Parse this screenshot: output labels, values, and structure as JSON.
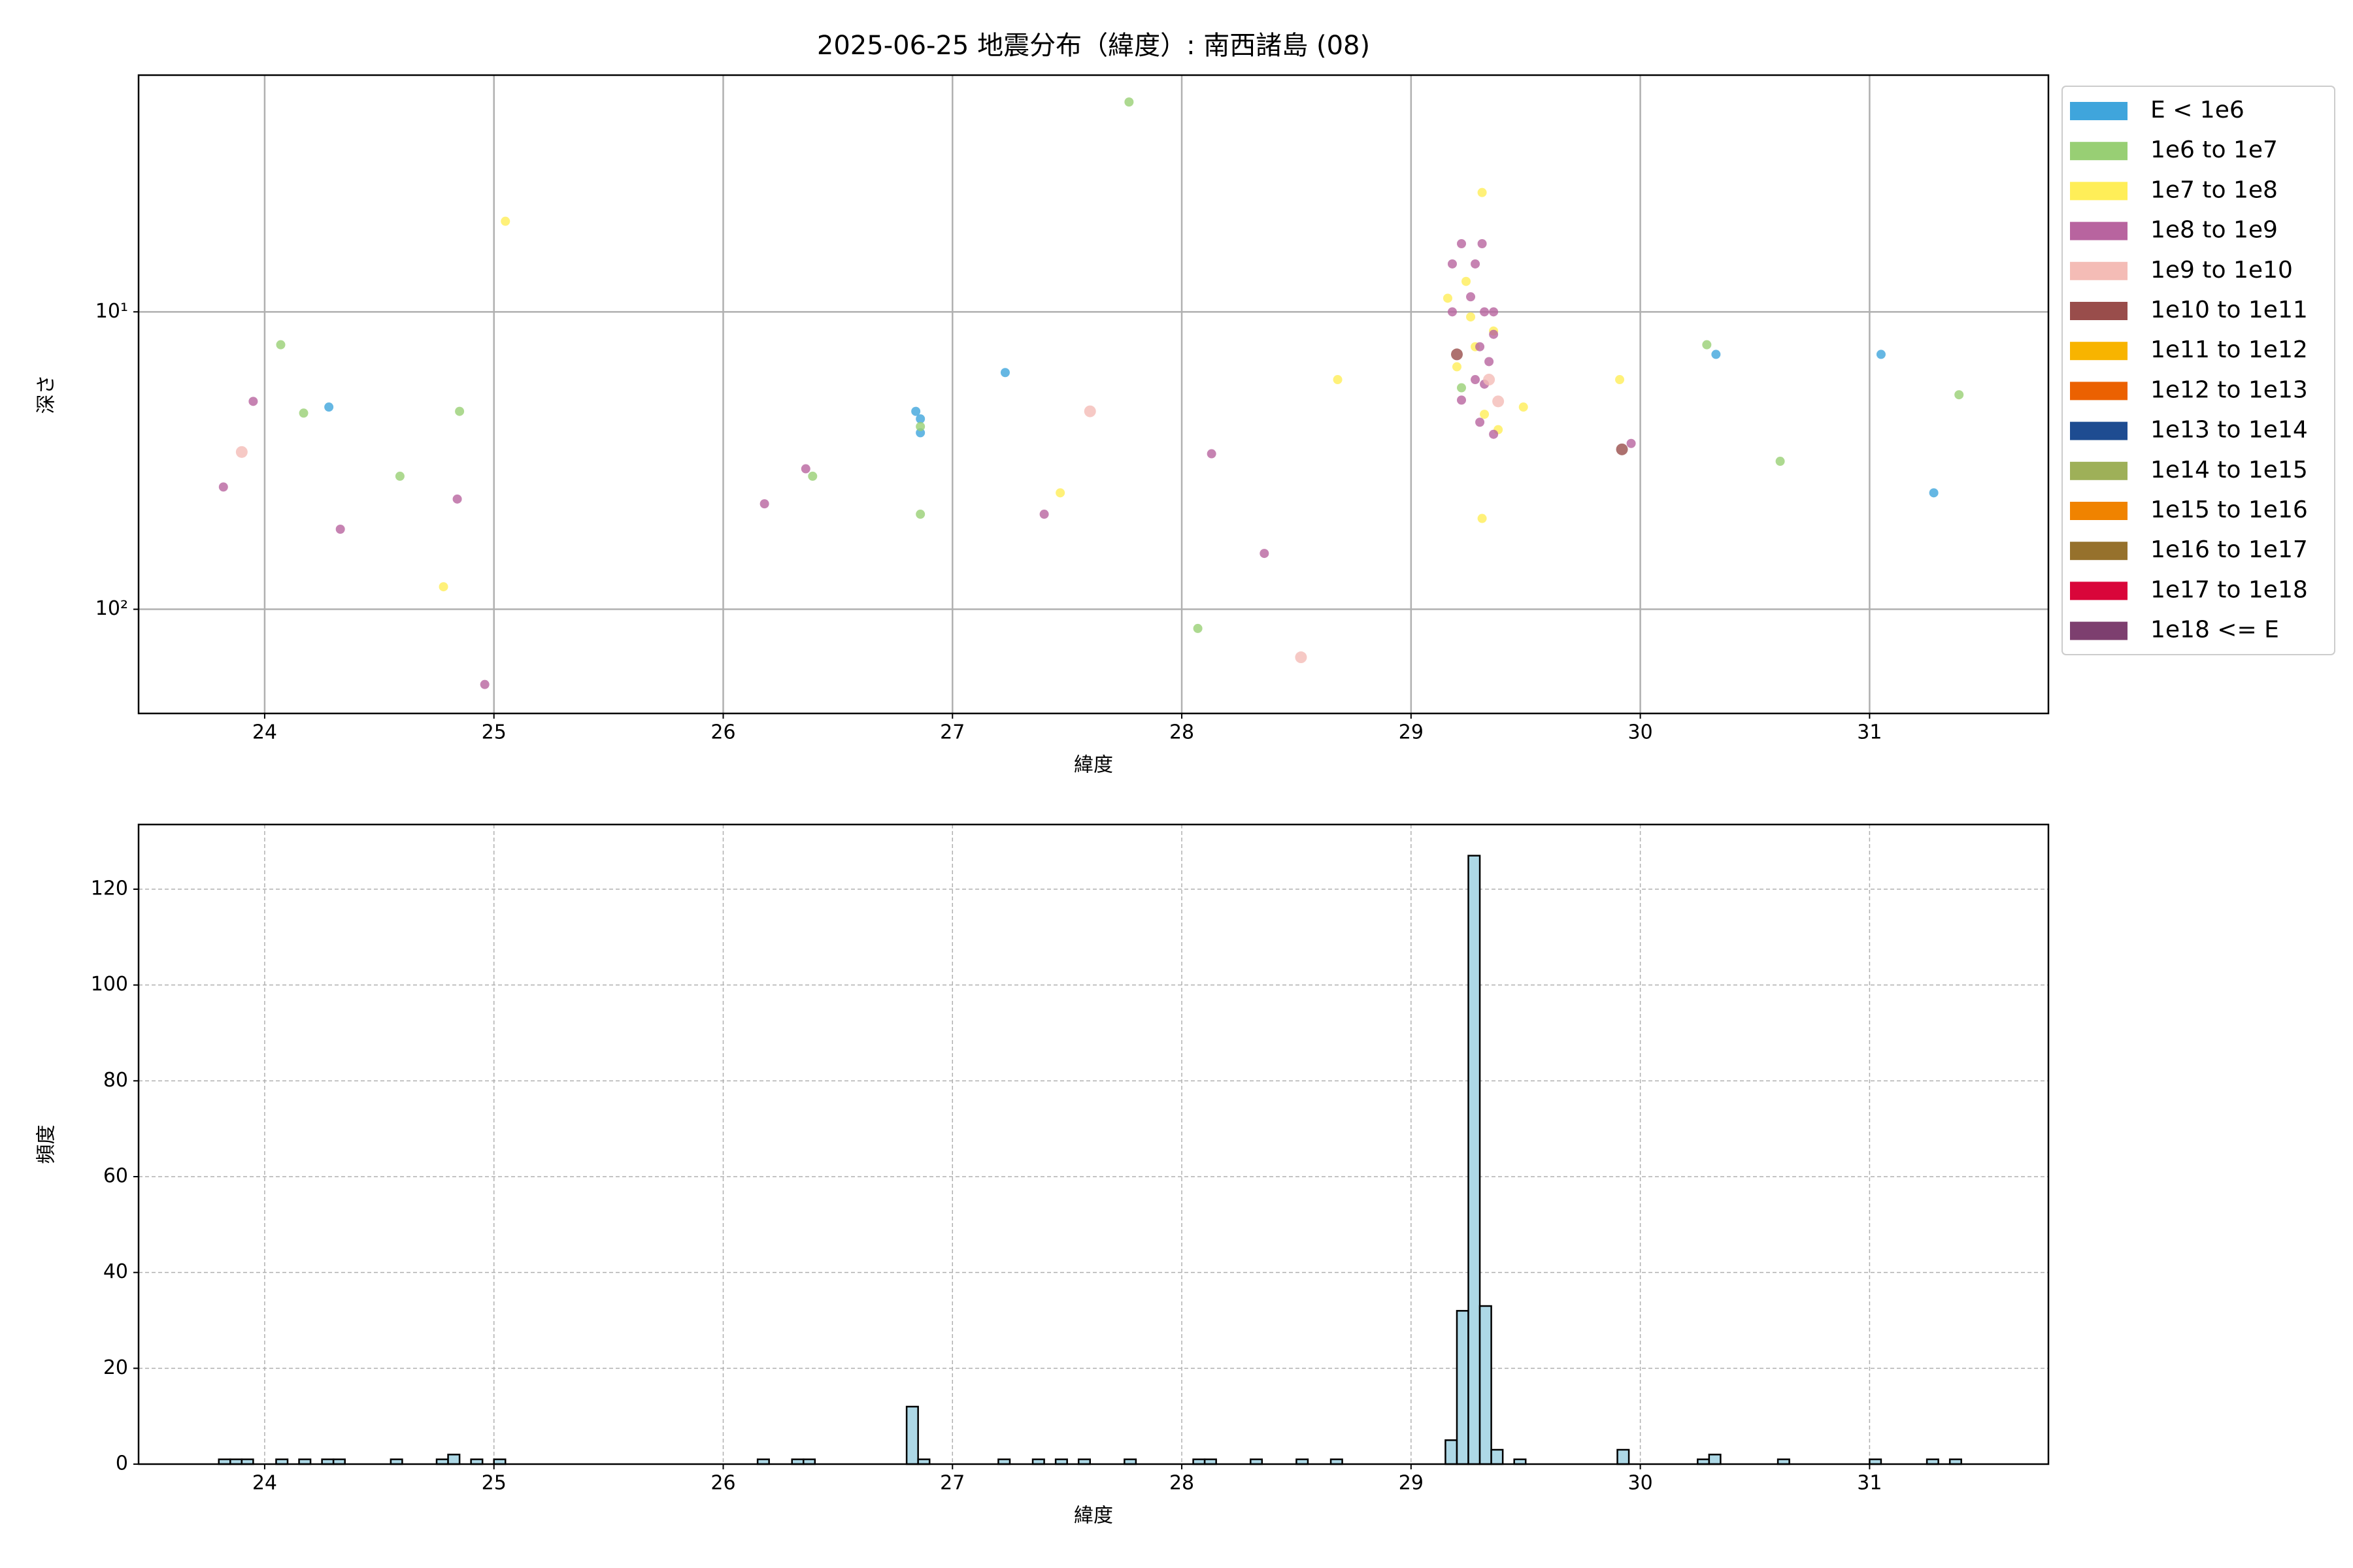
{
  "chart_data": [
    {
      "type": "scatter",
      "title": "2025-06-25 地震分布（緯度）: 南西諸島 (08)",
      "xlabel": "緯度",
      "ylabel": "深さ",
      "xlim": [
        23.45,
        31.78
      ],
      "xticks": [
        24,
        25,
        26,
        27,
        28,
        29,
        30,
        31
      ],
      "ylim": [
        1.6,
        224
      ],
      "yscale": "log",
      "invert_y": true,
      "yticks": [
        {
          "value": 10,
          "label": "10¹"
        },
        {
          "value": 100,
          "label": "10²"
        }
      ],
      "grid": true,
      "legend": "outside-upper-right",
      "series": [
        {
          "name": "E < 1e6",
          "color": "#3fa5dc",
          "x": [
            24.28,
            26.84,
            26.86,
            26.86,
            27.23,
            30.33,
            31.05,
            31.28
          ],
          "values": [
            20.9,
            21.6,
            22.9,
            25.5,
            16.0,
            13.9,
            13.9,
            40.6
          ]
        },
        {
          "name": "1e6 to 1e7",
          "color": "#98cf74",
          "x": [
            24.07,
            24.17,
            24.59,
            24.85,
            26.39,
            26.86,
            26.86,
            27.77,
            28.07,
            29.22,
            30.29,
            30.61,
            31.39
          ],
          "values": [
            12.9,
            21.9,
            35.7,
            21.6,
            35.7,
            24.3,
            47.9,
            1.97,
            116,
            18,
            12.9,
            31.8,
            19.0
          ]
        },
        {
          "name": "1e7 to 1e8",
          "color": "#ffee58",
          "x": [
            25.05,
            24.78,
            27.47,
            28.68,
            29.49,
            29.91,
            29.31,
            29.31,
            29.16,
            29.24,
            29.28,
            29.36,
            29.2,
            29.32,
            29.38,
            29.26
          ],
          "values": [
            4.96,
            84,
            40.6,
            16.9,
            20.9,
            16.9,
            3.97,
            49.5,
            9.0,
            7.9,
            13.1,
            11.6,
            15.3,
            22.1,
            24.9,
            10.4
          ]
        },
        {
          "name": "1e8 to 1e9",
          "color": "#b8649f",
          "x": [
            23.82,
            23.95,
            24.33,
            24.84,
            24.96,
            26.18,
            26.36,
            27.4,
            28.13,
            28.36,
            29.96,
            29.22,
            29.31,
            29.18,
            29.28,
            29.26,
            29.18,
            29.32,
            29.36,
            29.36,
            29.3,
            29.34,
            29.22,
            29.32,
            29.3,
            29.36,
            29.28
          ],
          "values": [
            38.8,
            20,
            53.8,
            42.6,
            179,
            44.2,
            33.7,
            47.9,
            30,
            64.9,
            27.7,
            5.9,
            5.9,
            6.9,
            6.9,
            8.9,
            10,
            10,
            10,
            11.9,
            13.1,
            14.7,
            19.8,
            17.5,
            23.5,
            25.8,
            16.9
          ]
        },
        {
          "name": "1e9 to 1e10",
          "color": "#f4bcb6",
          "x": [
            23.9,
            27.6,
            28.52,
            29.38,
            29.34
          ],
          "values": [
            29.6,
            21.6,
            145,
            20,
            16.9
          ]
        },
        {
          "name": "1e10 to 1e11",
          "color": "#994d4b",
          "x": [
            29.2,
            29.92
          ],
          "values": [
            13.9,
            29
          ]
        },
        {
          "name": "1e11 to 1e12",
          "color": "#f8b400",
          "x": [],
          "values": []
        },
        {
          "name": "1e12 to 1e13",
          "color": "#eb6101",
          "x": [],
          "values": []
        },
        {
          "name": "1e13 to 1e14",
          "color": "#1e4c91",
          "x": [],
          "values": []
        },
        {
          "name": "1e14 to 1e15",
          "color": "#9eb058",
          "x": [],
          "values": []
        },
        {
          "name": "1e15 to 1e16",
          "color": "#f08300",
          "x": [],
          "values": []
        },
        {
          "name": "1e16 to 1e17",
          "color": "#96712c",
          "x": [],
          "values": []
        },
        {
          "name": "1e17 to 1e18",
          "color": "#d9063a",
          "x": [],
          "values": []
        },
        {
          "name": "1e18 <= E",
          "color": "#7d3f6f",
          "x": [],
          "values": []
        }
      ]
    },
    {
      "type": "histogram",
      "xlabel": "緯度",
      "ylabel": "頻度",
      "xlim": [
        23.45,
        31.78
      ],
      "xticks": [
        24,
        25,
        26,
        27,
        28,
        29,
        30,
        31
      ],
      "ylim": [
        0,
        133.5
      ],
      "yticks": [
        0,
        20,
        40,
        60,
        80,
        100,
        120
      ],
      "grid": true,
      "grid_style": "dashed",
      "color": "#add8e6",
      "edge_color": "#000000",
      "bins": [
        23.8,
        23.85,
        23.9,
        23.95,
        24,
        24.05,
        24.1,
        24.15,
        24.2,
        24.25,
        24.3,
        24.35,
        24.4,
        24.45,
        24.5,
        24.55,
        24.6,
        24.65,
        24.7,
        24.75,
        24.8,
        24.85,
        24.9,
        24.95,
        25,
        25.05,
        25.1,
        25.15,
        25.2,
        25.25,
        25.3,
        25.35,
        25.4,
        25.45,
        25.5,
        25.55,
        25.6,
        25.65,
        25.7,
        25.75,
        25.8,
        25.85,
        25.9,
        25.95,
        26,
        26.05,
        26.1,
        26.15,
        26.2,
        26.25,
        26.3,
        26.35,
        26.4,
        26.45,
        26.5,
        26.55,
        26.6,
        26.65,
        26.7,
        26.75,
        26.8,
        26.85,
        26.9,
        26.95,
        27,
        27.05,
        27.1,
        27.15,
        27.2,
        27.25,
        27.3,
        27.35,
        27.4,
        27.45,
        27.5,
        27.55,
        27.6,
        27.65,
        27.7,
        27.75,
        27.8,
        27.85,
        27.9,
        27.95,
        28,
        28.05,
        28.1,
        28.15,
        28.2,
        28.25,
        28.3,
        28.35,
        28.4,
        28.45,
        28.5,
        28.55,
        28.6,
        28.65,
        28.7,
        28.75,
        28.8,
        28.85,
        28.9,
        28.95,
        29,
        29.05,
        29.1,
        29.15,
        29.2,
        29.25,
        29.3,
        29.35,
        29.4,
        29.45,
        29.5,
        29.55,
        29.6,
        29.65,
        29.7,
        29.75,
        29.8,
        29.85,
        29.9,
        29.95,
        30,
        30.05,
        30.1,
        30.15,
        30.2,
        30.25,
        30.3,
        30.35,
        30.4,
        30.45,
        30.5,
        30.55,
        30.6,
        30.65,
        30.7,
        30.75,
        30.8,
        30.85,
        30.9,
        30.95,
        31,
        31.05,
        31.1,
        31.15,
        31.2,
        31.25,
        31.3,
        31.35,
        31.4
      ],
      "values": [
        1,
        1,
        1,
        0,
        0,
        1,
        0,
        1,
        0,
        1,
        1,
        0,
        0,
        0,
        0,
        1,
        0,
        0,
        0,
        1,
        2,
        0,
        1,
        0,
        1,
        0,
        0,
        0,
        0,
        0,
        0,
        0,
        0,
        0,
        0,
        0,
        0,
        0,
        0,
        0,
        0,
        0,
        0,
        0,
        0,
        0,
        0,
        1,
        0,
        0,
        1,
        1,
        0,
        0,
        0,
        0,
        0,
        0,
        0,
        0,
        12,
        1,
        0,
        0,
        0,
        0,
        0,
        0,
        1,
        0,
        0,
        1,
        0,
        1,
        0,
        1,
        0,
        0,
        0,
        1,
        0,
        0,
        0,
        0,
        0,
        1,
        1,
        0,
        0,
        0,
        1,
        0,
        0,
        0,
        1,
        0,
        0,
        1,
        0,
        0,
        0,
        0,
        0,
        0,
        0,
        0,
        0,
        5,
        32,
        127,
        33,
        3,
        0,
        1,
        0,
        0,
        0,
        0,
        0,
        0,
        0,
        0,
        3,
        0,
        0,
        0,
        0,
        0,
        0,
        1,
        2,
        0,
        0,
        0,
        0,
        0,
        1,
        0,
        0,
        0,
        0,
        0,
        0,
        0,
        1,
        0,
        0,
        0,
        0,
        1,
        0,
        1
      ]
    }
  ]
}
